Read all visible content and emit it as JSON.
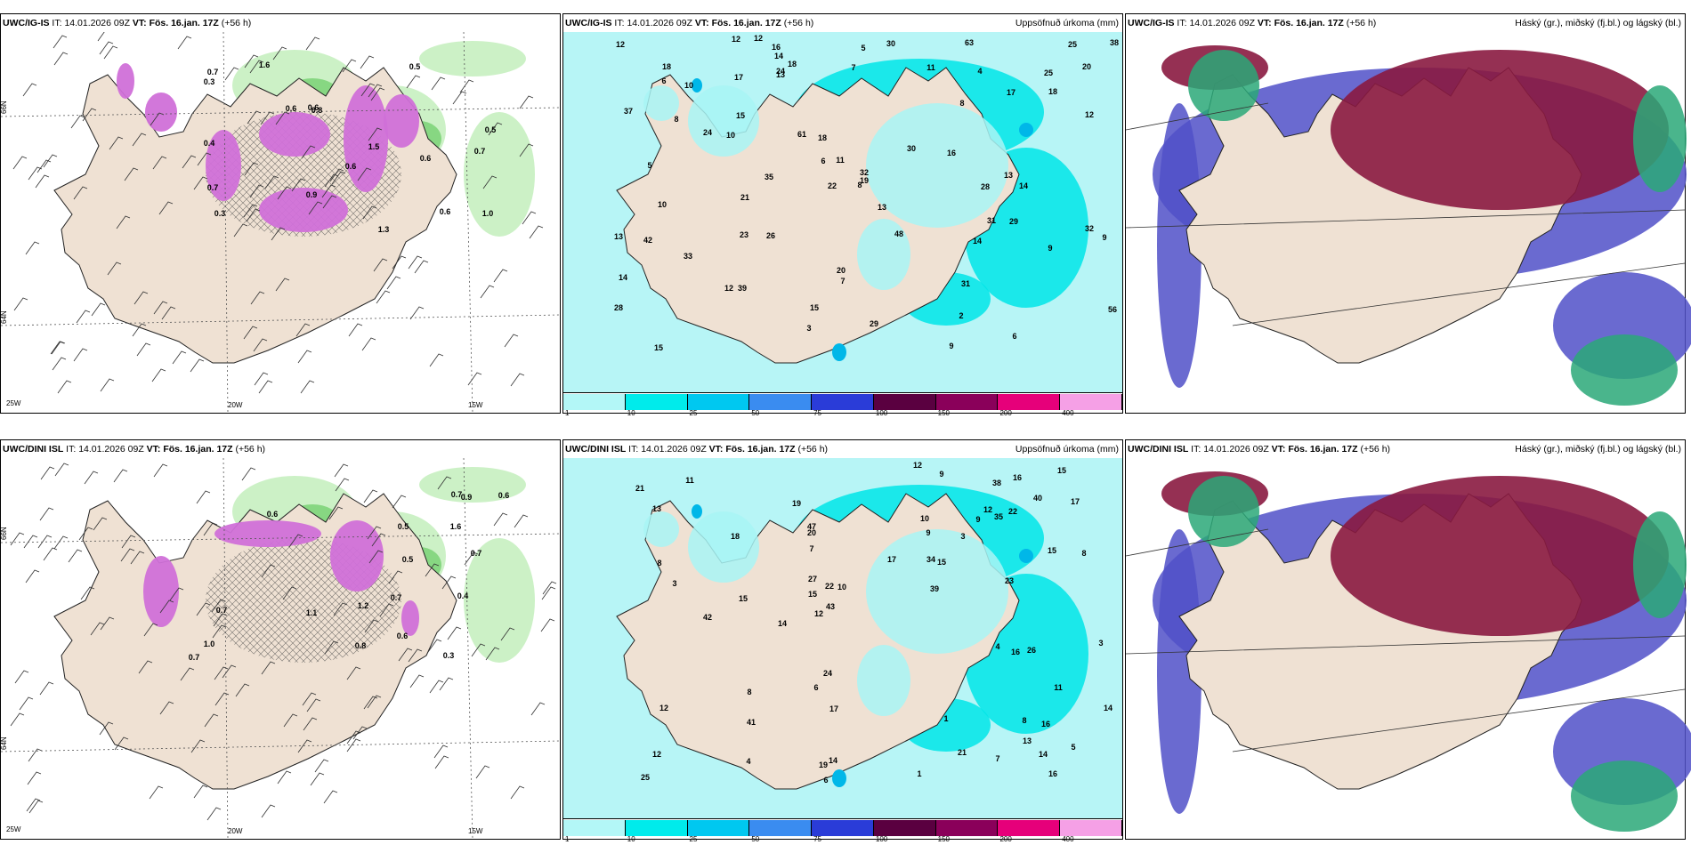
{
  "panels": [
    {
      "model": "UWC/IG-IS",
      "it_label": "IT:",
      "it_time": "14.01.2026 09Z",
      "vt_label": "VT:",
      "vt_time": "Fös. 16.jan. 17Z",
      "lead": "(+56 h)",
      "right_title": "",
      "type": "wind-precip",
      "values": [
        "0.6",
        "0.7",
        "0.3",
        "1.6",
        "0.8",
        "0.6",
        "0.7",
        "0.5",
        "0.6",
        "1.3",
        "0.3",
        "0.4",
        "0.7",
        "1.0",
        "0.9",
        "0.5",
        "0.6",
        "1.5",
        "0.6"
      ],
      "lat_labels": [
        "66N",
        "64N"
      ],
      "lon_labels": [
        "25W",
        "20W",
        "15W"
      ]
    },
    {
      "model": "UWC/IG-IS",
      "it_label": "IT:",
      "it_time": "14.01.2026 09Z",
      "vt_label": "VT:",
      "vt_time": "Fös. 16.jan. 17Z",
      "lead": "(+56 h)",
      "right_title": "Uppsöfnuð úrkoma (mm)",
      "type": "accum",
      "values": [
        "8",
        "13",
        "18",
        "35",
        "9",
        "18",
        "28",
        "56",
        "31",
        "25",
        "26",
        "42",
        "61",
        "32",
        "33",
        "63",
        "17",
        "14",
        "21",
        "13",
        "20",
        "18",
        "10",
        "13",
        "24",
        "18",
        "14",
        "29",
        "16",
        "28",
        "39",
        "23",
        "22",
        "25",
        "32",
        "12",
        "8",
        "4",
        "7",
        "5",
        "12",
        "20",
        "16",
        "19",
        "30",
        "13",
        "31",
        "15",
        "6",
        "10",
        "3",
        "2",
        "6",
        "17",
        "29",
        "30",
        "11",
        "11",
        "10",
        "12",
        "9",
        "15",
        "12",
        "14",
        "15",
        "6",
        "14",
        "9",
        "12",
        "24",
        "38",
        "37",
        "48",
        "8",
        "7",
        "5"
      ],
      "colorbar_ticks": [
        "1",
        "10",
        "25",
        "50",
        "75",
        "100",
        "150",
        "200",
        "400"
      ],
      "colorbar_colors": [
        "#b3f7f7",
        "#00ebeb",
        "#00c8f0",
        "#3a8cf0",
        "#2a3cd8",
        "#5a0040",
        "#8a005a",
        "#e6007a",
        "#f5a0e6"
      ]
    },
    {
      "model": "UWC/IG-IS",
      "it_label": "IT:",
      "it_time": "14.01.2026 09Z",
      "vt_label": "VT:",
      "vt_time": "Fös. 16.jan. 17Z",
      "lead": "(+56 h)",
      "right_title": "Háský (gr.), miðský (fj.bl.) og lágský (bl.)",
      "type": "cloud"
    },
    {
      "model": "UWC/DINI ISL",
      "it_label": "IT:",
      "it_time": "14.01.2026 09Z",
      "vt_label": "VT:",
      "vt_time": "Fös. 16.jan. 17Z",
      "lead": "(+56 h)",
      "right_title": "",
      "type": "wind-precip",
      "values": [
        "0.9",
        "0.6",
        "0.6",
        "0.4",
        "1.6",
        "0.8",
        "0.7",
        "0.3",
        "0.6",
        "0.7",
        "1.2",
        "0.5",
        "1.0",
        "1.1",
        "0.7",
        "0.7",
        "0.5",
        "0.7"
      ],
      "lat_labels": [
        "66N",
        "64N"
      ],
      "lon_labels": [
        "25W",
        "20W",
        "15W"
      ]
    },
    {
      "model": "UWC/DINI ISL",
      "it_label": "IT:",
      "it_time": "14.01.2026 09Z",
      "vt_label": "VT:",
      "vt_time": "Fös. 16.jan. 17Z",
      "lead": "(+56 h)",
      "right_title": "Uppsöfnuð úrkoma (mm)",
      "type": "accum",
      "values": [
        "1",
        "7",
        "8",
        "15",
        "12",
        "9",
        "9",
        "12",
        "13",
        "17",
        "35",
        "39",
        "19",
        "43",
        "34",
        "26",
        "19",
        "47",
        "42",
        "25",
        "15",
        "12",
        "21",
        "17",
        "14",
        "9",
        "10",
        "40",
        "8",
        "23",
        "21",
        "15",
        "20",
        "22",
        "16",
        "38",
        "24",
        "27",
        "18",
        "4",
        "3",
        "11",
        "15",
        "16",
        "13",
        "17",
        "14",
        "12",
        "6",
        "14",
        "8",
        "22",
        "16",
        "16",
        "14",
        "15",
        "11",
        "10",
        "5",
        "12",
        "3",
        "4",
        "3",
        "1",
        "41",
        "8",
        "6",
        "7"
      ],
      "colorbar_ticks": [
        "1",
        "10",
        "25",
        "50",
        "75",
        "100",
        "150",
        "200",
        "400"
      ],
      "colorbar_colors": [
        "#b3f7f7",
        "#00ebeb",
        "#00c8f0",
        "#3a8cf0",
        "#2a3cd8",
        "#5a0040",
        "#8a005a",
        "#e6007a",
        "#f5a0e6"
      ]
    },
    {
      "model": "UWC/DINI ISL",
      "it_label": "IT:",
      "it_time": "14.01.2026 09Z",
      "vt_label": "VT:",
      "vt_time": "Fös. 16.jan. 17Z",
      "lead": "(+56 h)",
      "right_title": "Háský (gr.), miðský (fj.bl.) og lágský (bl.)",
      "type": "cloud"
    }
  ],
  "colors": {
    "land": "#efe1d3",
    "precip_light": "#c6f0c0",
    "precip_mid": "#7fd47a",
    "precip_dark": "#1e8a3a",
    "snow_magenta": "#d070d8",
    "accum_sea": "#b7f5f6",
    "accum_cyan": "#00e5e8",
    "cloud_high": "#8a1a40",
    "cloud_mid": "#5050c8",
    "cloud_low": "#2aa878"
  }
}
